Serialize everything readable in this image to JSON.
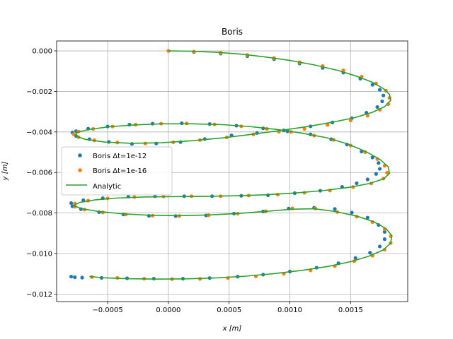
{
  "chart_data": {
    "type": "line",
    "title": "Boris",
    "xlabel": "x [m]",
    "ylabel": "y [m]",
    "xlim": [
      -0.00092,
      0.00197
    ],
    "ylim": [
      -0.01237,
      0.00049
    ],
    "xticks": [
      -0.0005,
      0.0,
      0.0005,
      0.001,
      0.0015
    ],
    "xtick_labels": [
      "−0.0005",
      "0.0000",
      "0.0005",
      "0.0010",
      "0.0015"
    ],
    "yticks": [
      0.0,
      -0.002,
      -0.004,
      -0.006,
      -0.008,
      -0.01,
      -0.012
    ],
    "ytick_labels": [
      "0.000",
      "−0.002",
      "−0.004",
      "−0.006",
      "−0.008",
      "−0.010",
      "−0.012"
    ],
    "grid": true,
    "legend_position": "center-left",
    "legend": [
      {
        "label": "Boris Δt=1e-12",
        "marker": "dot",
        "color": "#1f77b4"
      },
      {
        "label": "Boris Δt=1e-16",
        "marker": "dot",
        "color": "#ff7f0e"
      },
      {
        "label": "Analytic",
        "marker": "line",
        "color": "#2ca02c"
      }
    ],
    "series": [
      {
        "name": "Boris Δt=1e-12",
        "color": "#1f77b4",
        "kind": "scatter",
        "points": [
          [
            0.0,
            0.0
          ],
          [
            0.00021,
            -5.5e-05
          ],
          [
            0.00043,
            -0.00013
          ],
          [
            0.00065,
            -0.00026
          ],
          [
            0.00087,
            -0.00041
          ],
          [
            0.00108,
            -0.00062
          ],
          [
            0.00127,
            -0.00084
          ],
          [
            0.00144,
            -0.00107
          ],
          [
            0.00158,
            -0.00137
          ],
          [
            0.00168,
            -0.00167
          ],
          [
            0.00174,
            -0.00192
          ],
          [
            0.00177,
            -0.0022
          ],
          [
            0.00176,
            -0.00249
          ],
          [
            0.00172,
            -0.00277
          ],
          [
            0.00163,
            -0.00305
          ],
          [
            0.00151,
            -0.00332
          ],
          [
            0.00135,
            -0.00353
          ],
          [
            0.00117,
            -0.00372
          ],
          [
            0.00095,
            -0.00392
          ],
          [
            0.00073,
            -0.00405
          ],
          [
            0.00052,
            -0.00417
          ],
          [
            0.0003,
            -0.00435
          ],
          [
            0.0001,
            -0.0045
          ],
          [
            -0.0001,
            -0.00457
          ],
          [
            -0.0003,
            -0.00459
          ],
          [
            -0.00049,
            -0.00449
          ],
          [
            -0.00065,
            -0.00436
          ],
          [
            -0.00076,
            -0.0042
          ],
          [
            -0.00079,
            -0.00403
          ],
          [
            -0.00076,
            -0.00396
          ],
          [
            -0.00066,
            -0.00384
          ],
          [
            -0.0005,
            -0.00373
          ],
          [
            -0.00032,
            -0.00364
          ],
          [
            -0.00013,
            -0.00359
          ],
          [
            0.00011,
            -0.00357
          ],
          [
            0.00034,
            -0.00361
          ],
          [
            0.00056,
            -0.00369
          ],
          [
            0.00078,
            -0.00382
          ],
          [
            0.00098,
            -0.00397
          ],
          [
            0.00117,
            -0.00412
          ],
          [
            0.00134,
            -0.00436
          ],
          [
            0.00147,
            -0.00462
          ],
          [
            0.00159,
            -0.00497
          ],
          [
            0.00168,
            -0.00526
          ],
          [
            0.00173,
            -0.00553
          ],
          [
            0.00174,
            -0.00582
          ],
          [
            0.00171,
            -0.00607
          ],
          [
            0.00164,
            -0.00634
          ],
          [
            0.00155,
            -0.00653
          ],
          [
            0.00143,
            -0.00671
          ],
          [
            0.00125,
            -0.0069
          ],
          [
            0.00104,
            -0.00702
          ],
          [
            0.00082,
            -0.00712
          ],
          [
            0.0006,
            -0.00715
          ],
          [
            0.00036,
            -0.00717
          ],
          [
            0.00013,
            -0.00717
          ],
          [
            -0.00011,
            -0.00717
          ],
          [
            -0.00033,
            -0.00719
          ],
          [
            -0.00054,
            -0.00727
          ],
          [
            -0.0007,
            -0.00737
          ],
          [
            -0.0008,
            -0.00751
          ],
          [
            -0.00079,
            -0.00767
          ],
          [
            -0.00072,
            -0.00781
          ],
          [
            -0.00057,
            -0.00796
          ],
          [
            -0.00037,
            -0.00807
          ],
          [
            -0.00016,
            -0.00814
          ],
          [
            6e-05,
            -0.00815
          ],
          [
            0.00031,
            -0.00812
          ],
          [
            0.00054,
            -0.00803
          ],
          [
            0.00078,
            -0.00792
          ],
          [
            0.00099,
            -0.00778
          ],
          [
            0.0012,
            -0.00774
          ],
          [
            0.00137,
            -0.0078
          ],
          [
            0.00151,
            -0.00798
          ],
          [
            0.00164,
            -0.00823
          ],
          [
            0.00173,
            -0.00859
          ],
          [
            0.00178,
            -0.00893
          ],
          [
            0.00178,
            -0.00929
          ],
          [
            0.00174,
            -0.00965
          ],
          [
            0.00166,
            -0.00996
          ],
          [
            0.00154,
            -0.01022
          ],
          [
            0.0014,
            -0.01048
          ],
          [
            0.00122,
            -0.0107
          ],
          [
            0.001,
            -0.01089
          ],
          [
            0.00078,
            -0.01104
          ],
          [
            0.00057,
            -0.01114
          ],
          [
            0.00034,
            -0.01121
          ],
          [
            0.00012,
            -0.01124
          ],
          [
            -0.00012,
            -0.01124
          ],
          [
            -0.00034,
            -0.01122
          ],
          [
            -0.00055,
            -0.0112
          ],
          [
            -0.00071,
            -0.01119
          ],
          [
            -0.00077,
            -0.01117
          ],
          [
            -0.0008,
            -0.01114
          ]
        ]
      },
      {
        "name": "Boris Δt=1e-16",
        "color": "#ff7f0e",
        "kind": "scatter",
        "points": [
          [
            0.0,
            0.0
          ],
          [
            0.00021,
            -3e-05
          ],
          [
            0.00043,
            -9e-05
          ],
          [
            0.00065,
            -0.0002
          ],
          [
            0.00087,
            -0.00035
          ],
          [
            0.00108,
            -0.00056
          ],
          [
            0.00127,
            -0.00074
          ],
          [
            0.00144,
            -0.00096
          ],
          [
            0.00159,
            -0.00127
          ],
          [
            0.00171,
            -0.00161
          ],
          [
            0.00179,
            -0.00196
          ],
          [
            0.00182,
            -0.00232
          ],
          [
            0.00181,
            -0.00263
          ],
          [
            0.00174,
            -0.00291
          ],
          [
            0.00164,
            -0.0032
          ],
          [
            0.0015,
            -0.00343
          ],
          [
            0.00131,
            -0.00365
          ],
          [
            0.00112,
            -0.00385
          ],
          [
            0.00091,
            -0.00399
          ],
          [
            0.0007,
            -0.00412
          ],
          [
            0.00048,
            -0.00427
          ],
          [
            0.00026,
            -0.0044
          ],
          [
            4e-05,
            -0.00451
          ],
          [
            -0.00019,
            -0.00457
          ],
          [
            -0.00042,
            -0.00452
          ],
          [
            -0.00061,
            -0.00441
          ],
          [
            -0.00074,
            -0.00426
          ],
          [
            -0.00078,
            -0.00411
          ],
          [
            -0.00074,
            -0.00398
          ],
          [
            -0.00062,
            -0.00385
          ],
          [
            -0.00046,
            -0.00373
          ],
          [
            -0.00027,
            -0.00364
          ],
          [
            -6e-05,
            -0.00359
          ],
          [
            0.00015,
            -0.00358
          ],
          [
            0.00038,
            -0.00363
          ],
          [
            0.0006,
            -0.00372
          ],
          [
            0.00081,
            -0.00385
          ],
          [
            0.00101,
            -0.004
          ],
          [
            0.0012,
            -0.00418
          ],
          [
            0.00136,
            -0.00439
          ],
          [
            0.0015,
            -0.00467
          ],
          [
            0.00162,
            -0.005
          ],
          [
            0.00172,
            -0.00534
          ],
          [
            0.00178,
            -0.00567
          ],
          [
            0.0018,
            -0.00601
          ],
          [
            0.00177,
            -0.0063
          ],
          [
            0.00167,
            -0.00654
          ],
          [
            0.00152,
            -0.00672
          ],
          [
            0.00133,
            -0.00689
          ],
          [
            0.00112,
            -0.007
          ],
          [
            0.0009,
            -0.00709
          ],
          [
            0.00066,
            -0.00714
          ],
          [
            0.00043,
            -0.00717
          ],
          [
            0.00019,
            -0.00717
          ],
          [
            -4e-05,
            -0.00718
          ],
          [
            -0.00028,
            -0.00721
          ],
          [
            -0.0005,
            -0.00728
          ],
          [
            -0.00066,
            -0.00739
          ],
          [
            -0.00077,
            -0.00753
          ],
          [
            -0.00077,
            -0.00769
          ],
          [
            -0.00069,
            -0.00783
          ],
          [
            -0.00054,
            -0.00797
          ],
          [
            -0.00035,
            -0.00807
          ],
          [
            -0.00013,
            -0.00813
          ],
          [
            9e-05,
            -0.00815
          ],
          [
            0.00033,
            -0.00811
          ],
          [
            0.00057,
            -0.00803
          ],
          [
            0.0008,
            -0.00791
          ],
          [
            0.00102,
            -0.00777
          ],
          [
            0.00121,
            -0.00778
          ],
          [
            0.00139,
            -0.00795
          ],
          [
            0.00155,
            -0.00818
          ],
          [
            0.00168,
            -0.00845
          ],
          [
            0.00178,
            -0.00879
          ],
          [
            0.00183,
            -0.00914
          ],
          [
            0.00183,
            -0.00948
          ],
          [
            0.00178,
            -0.00981
          ],
          [
            0.00168,
            -0.01011
          ],
          [
            0.00153,
            -0.01038
          ],
          [
            0.00137,
            -0.01062
          ],
          [
            0.00117,
            -0.01083
          ],
          [
            0.00095,
            -0.011
          ],
          [
            0.00072,
            -0.01113
          ],
          [
            0.00049,
            -0.01121
          ],
          [
            0.00026,
            -0.01125
          ],
          [
            3e-05,
            -0.01126
          ],
          [
            -0.0002,
            -0.01124
          ],
          [
            -0.00042,
            -0.0112
          ],
          [
            -0.00063,
            -0.01116
          ]
        ]
      },
      {
        "name": "Analytic",
        "color": "#2ca02c",
        "kind": "line",
        "points": [
          [
            0.0,
            0.0
          ],
          [
            0.0002,
            -2e-05
          ],
          [
            0.0004,
            -7e-05
          ],
          [
            0.0006,
            -0.00016
          ],
          [
            0.0008,
            -0.0003
          ],
          [
            0.001,
            -0.00047
          ],
          [
            0.0012,
            -0.00069
          ],
          [
            0.0014,
            -0.00097
          ],
          [
            0.00155,
            -0.00125
          ],
          [
            0.00168,
            -0.00155
          ],
          [
            0.00177,
            -0.00186
          ],
          [
            0.00182,
            -0.00215
          ],
          [
            0.00183,
            -0.00245
          ],
          [
            0.00178,
            -0.00275
          ],
          [
            0.00168,
            -0.00303
          ],
          [
            0.00153,
            -0.0033
          ],
          [
            0.00135,
            -0.00352
          ],
          [
            0.00115,
            -0.00373
          ],
          [
            0.00092,
            -0.00393
          ],
          [
            0.00068,
            -0.00412
          ],
          [
            0.00045,
            -0.00429
          ],
          [
            0.0002,
            -0.00443
          ],
          [
            -5e-05,
            -0.00453
          ],
          [
            -0.0003,
            -0.00456
          ],
          [
            -0.00052,
            -0.0045
          ],
          [
            -0.00068,
            -0.00437
          ],
          [
            -0.00077,
            -0.00419
          ],
          [
            -0.00075,
            -0.00402
          ],
          [
            -0.00065,
            -0.00387
          ],
          [
            -0.00048,
            -0.00374
          ],
          [
            -0.00027,
            -0.00365
          ],
          [
            -5e-05,
            -0.0036
          ],
          [
            0.0002,
            -0.0036
          ],
          [
            0.00045,
            -0.00364
          ],
          [
            0.00068,
            -0.00374
          ],
          [
            0.0009,
            -0.00388
          ],
          [
            0.0011,
            -0.00406
          ],
          [
            0.0013,
            -0.00428
          ],
          [
            0.00147,
            -0.00458
          ],
          [
            0.00162,
            -0.00495
          ],
          [
            0.00174,
            -0.00535
          ],
          [
            0.00181,
            -0.00572
          ],
          [
            0.00182,
            -0.00605
          ],
          [
            0.00177,
            -0.00632
          ],
          [
            0.00165,
            -0.00655
          ],
          [
            0.00148,
            -0.00674
          ],
          [
            0.00128,
            -0.00689
          ],
          [
            0.00105,
            -0.00701
          ],
          [
            0.0008,
            -0.0071
          ],
          [
            0.00055,
            -0.00715
          ],
          [
            0.0003,
            -0.00718
          ],
          [
            5e-05,
            -0.00719
          ],
          [
            -0.0002,
            -0.00721
          ],
          [
            -0.00042,
            -0.00726
          ],
          [
            -0.0006,
            -0.00735
          ],
          [
            -0.00073,
            -0.00748
          ],
          [
            -0.00078,
            -0.00763
          ],
          [
            -0.00072,
            -0.00778
          ],
          [
            -0.00058,
            -0.00792
          ],
          [
            -0.00038,
            -0.00804
          ],
          [
            -0.00015,
            -0.00811
          ],
          [
            8e-05,
            -0.00813
          ],
          [
            0.00032,
            -0.0081
          ],
          [
            0.00056,
            -0.00803
          ],
          [
            0.0008,
            -0.00792
          ],
          [
            0.00102,
            -0.00781
          ],
          [
            0.0012,
            -0.00779
          ],
          [
            0.00138,
            -0.00793
          ],
          [
            0.00155,
            -0.00815
          ],
          [
            0.00169,
            -0.00843
          ],
          [
            0.00179,
            -0.00876
          ],
          [
            0.00184,
            -0.00912
          ],
          [
            0.00183,
            -0.00948
          ],
          [
            0.00177,
            -0.00982
          ],
          [
            0.00165,
            -0.01013
          ],
          [
            0.0015,
            -0.0104
          ],
          [
            0.00132,
            -0.01063
          ],
          [
            0.0011,
            -0.01083
          ],
          [
            0.00087,
            -0.01099
          ],
          [
            0.00063,
            -0.01112
          ],
          [
            0.0004,
            -0.0112
          ],
          [
            0.00015,
            -0.01125
          ],
          [
            -0.0001,
            -0.01126
          ],
          [
            -0.00035,
            -0.01124
          ],
          [
            -0.00055,
            -0.01119
          ],
          [
            -0.00065,
            -0.01113
          ]
        ]
      }
    ]
  }
}
